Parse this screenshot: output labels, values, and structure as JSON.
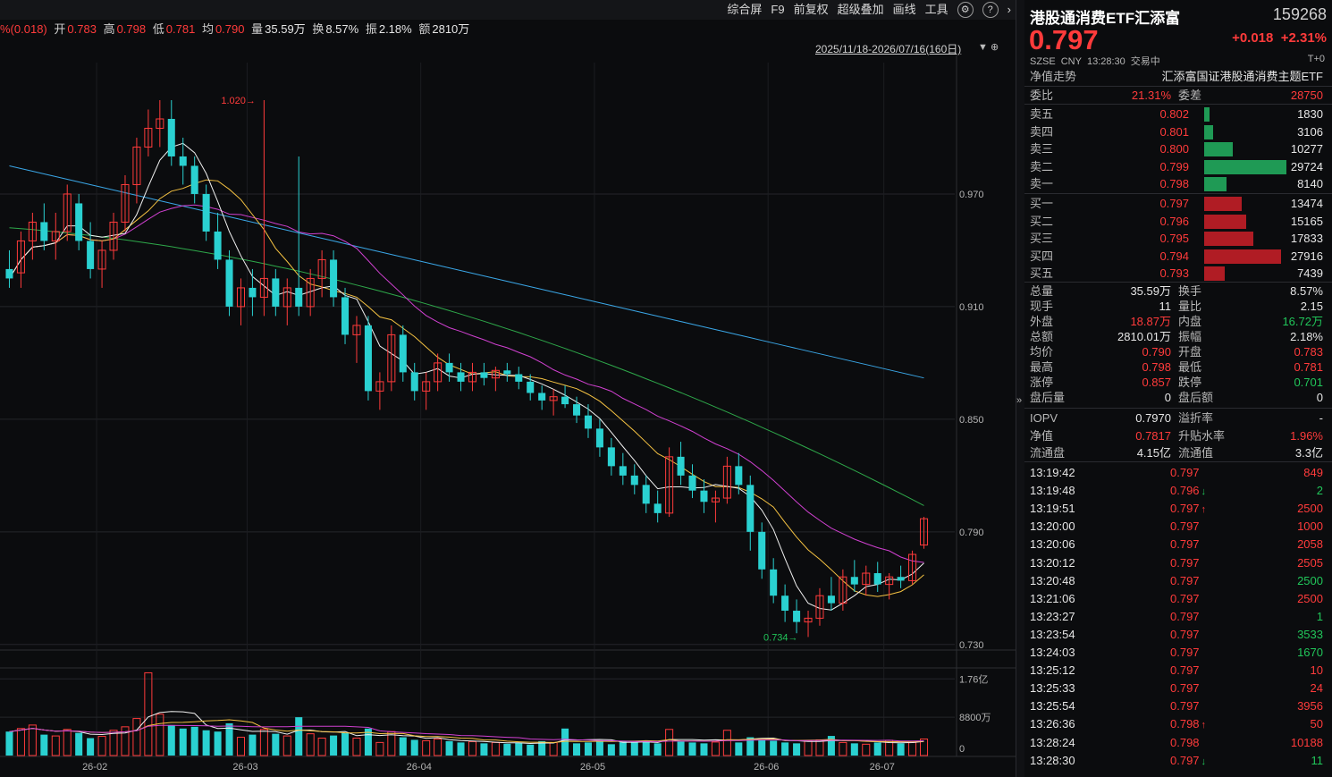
{
  "toolbar": {
    "items": [
      "综合屏",
      "F9",
      "前复权",
      "超级叠加",
      "画线",
      "工具"
    ],
    "icons": [
      "gear-icon",
      "help-icon",
      "chevron-right-icon"
    ]
  },
  "quote_line": {
    "change": "%(0.018)",
    "open_label": "开",
    "open": "0.783",
    "high_label": "高",
    "high": "0.798",
    "low_label": "低",
    "low": "0.781",
    "avg_label": "均",
    "avg": "0.790",
    "vol_label": "量",
    "vol": "35.59万",
    "turn_label": "换",
    "turn": "8.57%",
    "amp_label": "振",
    "amp": "2.18%",
    "amt_label": "额",
    "amt": "2810万"
  },
  "range": {
    "label": "2025/11/18-2026/07/16(160日)",
    "icons": "▼ ⊕"
  },
  "chart_data": {
    "type": "candlestick",
    "y_axis_labels": [
      "0.970",
      "0.910",
      "0.850",
      "0.790",
      "0.730"
    ],
    "y_axis_values": [
      0.97,
      0.91,
      0.85,
      0.79,
      0.73
    ],
    "ylim": [
      0.728,
      1.04
    ],
    "x_axis_labels": [
      "26-02",
      "26-03",
      "26-04",
      "26-05",
      "26-06",
      "26-07"
    ],
    "annotations": [
      {
        "text": "1.020",
        "value": 1.02
      },
      {
        "text": "0.734",
        "value": 0.734
      }
    ],
    "ohlc": [
      [
        0.93,
        0.94,
        0.92,
        0.925
      ],
      [
        0.928,
        0.95,
        0.92,
        0.945
      ],
      [
        0.945,
        0.96,
        0.935,
        0.955
      ],
      [
        0.955,
        0.965,
        0.94,
        0.945
      ],
      [
        0.945,
        0.96,
        0.935,
        0.95
      ],
      [
        0.95,
        0.975,
        0.945,
        0.97
      ],
      [
        0.965,
        0.97,
        0.94,
        0.945
      ],
      [
        0.945,
        0.955,
        0.925,
        0.93
      ],
      [
        0.93,
        0.945,
        0.92,
        0.94
      ],
      [
        0.94,
        0.96,
        0.935,
        0.955
      ],
      [
        0.955,
        0.98,
        0.95,
        0.975
      ],
      [
        0.975,
        1.0,
        0.965,
        0.995
      ],
      [
        0.995,
        1.015,
        0.99,
        1.005
      ],
      [
        1.005,
        1.02,
        0.995,
        1.01
      ],
      [
        1.01,
        1.02,
        0.985,
        0.99
      ],
      [
        0.99,
        1.0,
        0.975,
        0.985
      ],
      [
        0.985,
        0.99,
        0.965,
        0.97
      ],
      [
        0.97,
        0.975,
        0.945,
        0.95
      ],
      [
        0.95,
        0.96,
        0.93,
        0.935
      ],
      [
        0.935,
        0.94,
        0.905,
        0.91
      ],
      [
        0.91,
        0.925,
        0.9,
        0.92
      ],
      [
        0.92,
        0.93,
        0.905,
        0.915
      ],
      [
        0.915,
        1.02,
        0.905,
        0.925
      ],
      [
        0.925,
        0.93,
        0.905,
        0.91
      ],
      [
        0.91,
        0.925,
        0.9,
        0.92
      ],
      [
        0.92,
        0.99,
        0.905,
        0.91
      ],
      [
        0.91,
        0.93,
        0.905,
        0.925
      ],
      [
        0.925,
        0.94,
        0.915,
        0.935
      ],
      [
        0.935,
        0.94,
        0.91,
        0.915
      ],
      [
        0.915,
        0.92,
        0.89,
        0.895
      ],
      [
        0.895,
        0.905,
        0.88,
        0.9
      ],
      [
        0.9,
        0.905,
        0.86,
        0.865
      ],
      [
        0.865,
        0.875,
        0.855,
        0.87
      ],
      [
        0.87,
        0.9,
        0.865,
        0.895
      ],
      [
        0.895,
        0.9,
        0.87,
        0.875
      ],
      [
        0.875,
        0.88,
        0.86,
        0.865
      ],
      [
        0.865,
        0.875,
        0.855,
        0.87
      ],
      [
        0.87,
        0.885,
        0.865,
        0.88
      ],
      [
        0.88,
        0.885,
        0.87,
        0.875
      ],
      [
        0.875,
        0.88,
        0.865,
        0.87
      ],
      [
        0.87,
        0.88,
        0.865,
        0.875
      ],
      [
        0.875,
        0.88,
        0.868,
        0.872
      ],
      [
        0.872,
        0.878,
        0.865,
        0.876
      ],
      [
        0.876,
        0.88,
        0.87,
        0.874
      ],
      [
        0.874,
        0.878,
        0.866,
        0.87
      ],
      [
        0.87,
        0.874,
        0.86,
        0.864
      ],
      [
        0.864,
        0.868,
        0.855,
        0.86
      ],
      [
        0.86,
        0.866,
        0.852,
        0.862
      ],
      [
        0.862,
        0.868,
        0.856,
        0.858
      ],
      [
        0.858,
        0.862,
        0.848,
        0.852
      ],
      [
        0.852,
        0.858,
        0.84,
        0.845
      ],
      [
        0.845,
        0.85,
        0.83,
        0.835
      ],
      [
        0.835,
        0.84,
        0.82,
        0.825
      ],
      [
        0.825,
        0.832,
        0.815,
        0.82
      ],
      [
        0.82,
        0.826,
        0.81,
        0.815
      ],
      [
        0.815,
        0.82,
        0.8,
        0.805
      ],
      [
        0.805,
        0.812,
        0.795,
        0.8
      ],
      [
        0.8,
        0.835,
        0.798,
        0.83
      ],
      [
        0.83,
        0.838,
        0.815,
        0.82
      ],
      [
        0.82,
        0.826,
        0.808,
        0.812
      ],
      [
        0.812,
        0.818,
        0.8,
        0.806
      ],
      [
        0.806,
        0.812,
        0.795,
        0.808
      ],
      [
        0.808,
        0.83,
        0.805,
        0.825
      ],
      [
        0.825,
        0.832,
        0.81,
        0.815
      ],
      [
        0.815,
        0.82,
        0.78,
        0.79
      ],
      [
        0.79,
        0.795,
        0.765,
        0.77
      ],
      [
        0.77,
        0.776,
        0.752,
        0.756
      ],
      [
        0.756,
        0.762,
        0.742,
        0.748
      ],
      [
        0.748,
        0.754,
        0.736,
        0.742
      ],
      [
        0.742,
        0.748,
        0.734,
        0.744
      ],
      [
        0.744,
        0.76,
        0.74,
        0.756
      ],
      [
        0.756,
        0.766,
        0.748,
        0.752
      ],
      [
        0.752,
        0.77,
        0.748,
        0.766
      ],
      [
        0.766,
        0.775,
        0.758,
        0.762
      ],
      [
        0.762,
        0.772,
        0.756,
        0.768
      ],
      [
        0.768,
        0.774,
        0.758,
        0.762
      ],
      [
        0.762,
        0.768,
        0.754,
        0.766
      ],
      [
        0.766,
        0.772,
        0.76,
        0.764
      ],
      [
        0.764,
        0.78,
        0.762,
        0.778
      ],
      [
        0.783,
        0.798,
        0.781,
        0.797
      ]
    ],
    "volume_axis_labels": [
      "1.76亿",
      "8800万",
      "0"
    ],
    "volume_axis_values": [
      1.76,
      0.88,
      0
    ],
    "volume_max": 1.95,
    "volume": [
      0.55,
      0.62,
      0.7,
      0.48,
      0.45,
      0.6,
      0.52,
      0.4,
      0.44,
      0.58,
      0.66,
      0.85,
      1.9,
      0.95,
      0.7,
      0.62,
      0.66,
      0.58,
      0.55,
      0.74,
      0.42,
      0.48,
      0.6,
      0.5,
      0.45,
      0.88,
      0.5,
      0.4,
      0.46,
      0.52,
      0.4,
      0.62,
      0.3,
      0.55,
      0.42,
      0.36,
      0.34,
      0.38,
      0.33,
      0.3,
      0.32,
      0.28,
      0.3,
      0.27,
      0.29,
      0.25,
      0.33,
      0.3,
      0.62,
      0.28,
      0.3,
      0.35,
      0.26,
      0.32,
      0.3,
      0.34,
      0.28,
      0.6,
      0.32,
      0.3,
      0.28,
      0.31,
      0.58,
      0.3,
      0.42,
      0.36,
      0.34,
      0.3,
      0.28,
      0.33,
      0.36,
      0.45,
      0.3,
      0.28,
      0.26,
      0.3,
      0.35,
      0.28,
      0.3,
      0.38
    ]
  },
  "header": {
    "name": "港股通消费ETF汇添富",
    "code": "159268",
    "price": "0.797",
    "change": "+0.018",
    "change_pct": "+2.31%",
    "exchange": "SZSE",
    "currency": "CNY",
    "time": "13:28:30",
    "status": "交易中",
    "t0": "T+0"
  },
  "nav_row": {
    "label": "净值走势",
    "fund_name": "汇添富国证港股通消费主题ETF"
  },
  "ratio_row": {
    "label1": "委比",
    "value1": "21.31%",
    "label2": "委差",
    "value2": "28750"
  },
  "order_book": {
    "asks": [
      {
        "label": "卖五",
        "price": "0.802",
        "vol": "1830",
        "qty": 1830
      },
      {
        "label": "卖四",
        "price": "0.801",
        "vol": "3106",
        "qty": 3106
      },
      {
        "label": "卖三",
        "price": "0.800",
        "vol": "10277",
        "qty": 10277
      },
      {
        "label": "卖二",
        "price": "0.799",
        "vol": "29724",
        "qty": 29724
      },
      {
        "label": "卖一",
        "price": "0.798",
        "vol": "8140",
        "qty": 8140
      }
    ],
    "bids": [
      {
        "label": "买一",
        "price": "0.797",
        "vol": "13474",
        "qty": 13474
      },
      {
        "label": "买二",
        "price": "0.796",
        "vol": "15165",
        "qty": 15165
      },
      {
        "label": "买三",
        "price": "0.795",
        "vol": "17833",
        "qty": 17833
      },
      {
        "label": "买四",
        "price": "0.794",
        "vol": "27916",
        "qty": 27916
      },
      {
        "label": "买五",
        "price": "0.793",
        "vol": "7439",
        "qty": 7439
      }
    ]
  },
  "stats": [
    {
      "l1": "总量",
      "v1": "35.59万",
      "c1": "white",
      "l2": "换手",
      "v2": "8.57%",
      "c2": "white"
    },
    {
      "l1": "现手",
      "v1": "11",
      "c1": "white",
      "l2": "量比",
      "v2": "2.15",
      "c2": "white"
    },
    {
      "l1": "外盘",
      "v1": "18.87万",
      "c1": "red",
      "l2": "内盘",
      "v2": "16.72万",
      "c2": "green"
    },
    {
      "l1": "总额",
      "v1": "2810.01万",
      "c1": "white",
      "l2": "振幅",
      "v2": "2.18%",
      "c2": "white"
    },
    {
      "l1": "均价",
      "v1": "0.790",
      "c1": "red",
      "l2": "开盘",
      "v2": "0.783",
      "c2": "red"
    },
    {
      "l1": "最高",
      "v1": "0.798",
      "c1": "red",
      "l2": "最低",
      "v2": "0.781",
      "c2": "red"
    },
    {
      "l1": "涨停",
      "v1": "0.857",
      "c1": "red",
      "l2": "跌停",
      "v2": "0.701",
      "c2": "green"
    },
    {
      "l1": "盘后量",
      "v1": "0",
      "c1": "white",
      "l2": "盘后额",
      "v2": "0",
      "c2": "white"
    }
  ],
  "extra": [
    {
      "l1": "IOPV",
      "v1": "0.7970",
      "c1": "white",
      "l2": "溢折率",
      "v2": "-",
      "c2": "white"
    },
    {
      "l1": "净值",
      "v1": "0.7817",
      "c1": "red",
      "l2": "升贴水率",
      "v2": "1.96%",
      "c2": "red"
    },
    {
      "l1": "流通盘",
      "v1": "4.15亿",
      "c1": "white",
      "l2": "流通值",
      "v2": "3.3亿",
      "c2": "white"
    }
  ],
  "ticks": [
    {
      "time": "13:19:42",
      "price": "0.797",
      "arrow": "",
      "vol": "849",
      "vc": "red"
    },
    {
      "time": "13:19:48",
      "price": "0.796",
      "arrow": "↓",
      "vol": "2",
      "vc": "green"
    },
    {
      "time": "13:19:51",
      "price": "0.797",
      "arrow": "↑",
      "vol": "2500",
      "vc": "red"
    },
    {
      "time": "13:20:00",
      "price": "0.797",
      "arrow": "",
      "vol": "1000",
      "vc": "red"
    },
    {
      "time": "13:20:06",
      "price": "0.797",
      "arrow": "",
      "vol": "2058",
      "vc": "red"
    },
    {
      "time": "13:20:12",
      "price": "0.797",
      "arrow": "",
      "vol": "2505",
      "vc": "red"
    },
    {
      "time": "13:20:48",
      "price": "0.797",
      "arrow": "",
      "vol": "2500",
      "vc": "green"
    },
    {
      "time": "13:21:06",
      "price": "0.797",
      "arrow": "",
      "vol": "2500",
      "vc": "red"
    },
    {
      "time": "13:23:27",
      "price": "0.797",
      "arrow": "",
      "vol": "1",
      "vc": "green"
    },
    {
      "time": "13:23:54",
      "price": "0.797",
      "arrow": "",
      "vol": "3533",
      "vc": "green"
    },
    {
      "time": "13:24:03",
      "price": "0.797",
      "arrow": "",
      "vol": "1670",
      "vc": "green"
    },
    {
      "time": "13:25:12",
      "price": "0.797",
      "arrow": "",
      "vol": "10",
      "vc": "red"
    },
    {
      "time": "13:25:33",
      "price": "0.797",
      "arrow": "",
      "vol": "24",
      "vc": "red"
    },
    {
      "time": "13:25:54",
      "price": "0.797",
      "arrow": "",
      "vol": "3956",
      "vc": "red"
    },
    {
      "time": "13:26:36",
      "price": "0.798",
      "arrow": "↑",
      "vol": "50",
      "vc": "red"
    },
    {
      "time": "13:28:24",
      "price": "0.798",
      "arrow": "",
      "vol": "10188",
      "vc": "red"
    },
    {
      "time": "13:28:30",
      "price": "0.797",
      "arrow": "↓",
      "vol": "11",
      "vc": "green"
    }
  ],
  "colors": {
    "up": "#ff3b3b",
    "down": "#2ad1d1",
    "ask_bar": "#1f9a55",
    "bid_bar": "#b01c24",
    "ma5": "#f0f0f0",
    "ma10": "#f5c242",
    "ma20": "#d040d0",
    "ma60": "#2ea84a",
    "ma120": "#3aa6e6"
  }
}
